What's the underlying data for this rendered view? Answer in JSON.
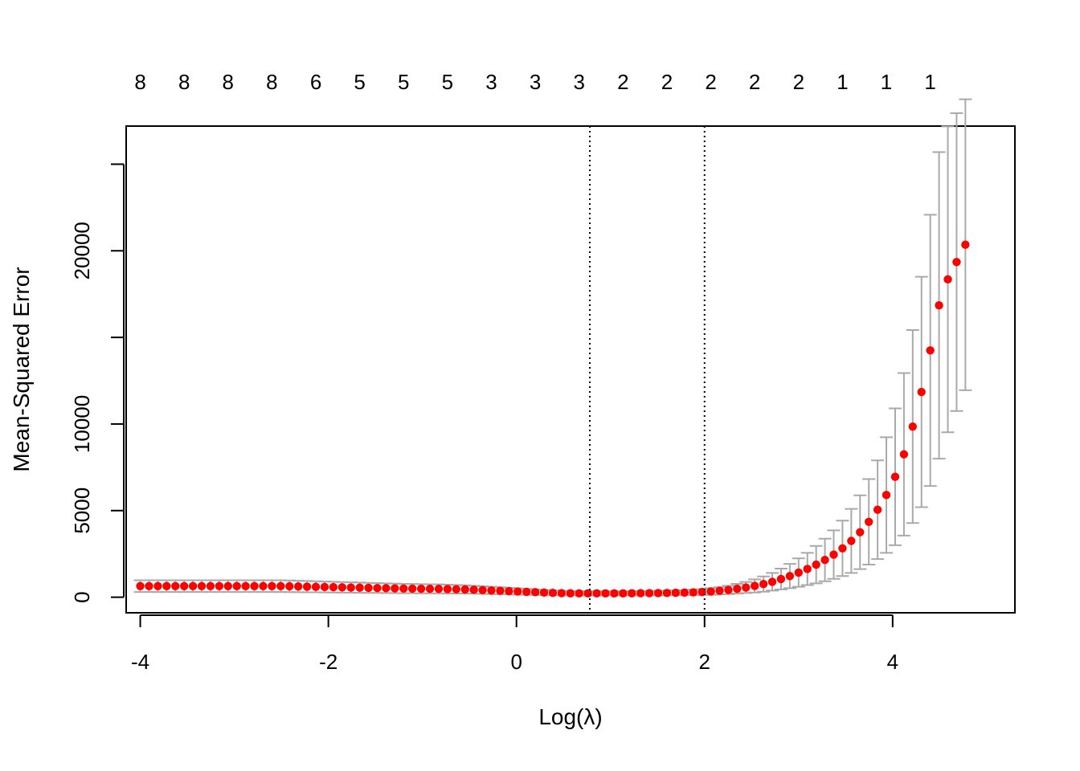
{
  "chart_data": {
    "type": "scatter",
    "title": "",
    "xlabel": "Log(λ)",
    "ylabel": "Mean-Squared Error",
    "xlim": [
      -4.15,
      5.3
    ],
    "ylim": [
      -900,
      27200
    ],
    "x_ticks": [
      -4,
      -2,
      0,
      2,
      4
    ],
    "x_tick_labels": [
      "-4",
      "-2",
      "0",
      "2",
      "4"
    ],
    "y_ticks": [
      0,
      5000,
      10000,
      15000,
      20000,
      25000
    ],
    "y_tick_labels": [
      "0",
      "5000",
      "10000",
      "",
      "20000",
      ""
    ],
    "top_axis": {
      "positions": [
        -4,
        -3.533,
        -3.067,
        -2.6,
        -2.133,
        -1.667,
        -1.2,
        -0.733,
        -0.267,
        0.2,
        0.667,
        1.133,
        1.6,
        2.067,
        2.533,
        3.0,
        3.467,
        3.933,
        4.4
      ],
      "labels": [
        "8",
        "8",
        "8",
        "8",
        "6",
        "5",
        "5",
        "5",
        "3",
        "3",
        "3",
        "2",
        "2",
        "2",
        "2",
        "2",
        "1",
        "1",
        "1"
      ]
    },
    "vlines": [
      0.78,
      2.0
    ],
    "log_lambda": [
      -4.0,
      -3.9067,
      -3.8133,
      -3.72,
      -3.6267,
      -3.5333,
      -3.44,
      -3.3467,
      -3.2533,
      -3.16,
      -3.0667,
      -2.9733,
      -2.88,
      -2.7867,
      -2.6933,
      -2.6,
      -2.5067,
      -2.4133,
      -2.32,
      -2.2267,
      -2.1333,
      -2.04,
      -1.9467,
      -1.8533,
      -1.76,
      -1.6667,
      -1.5733,
      -1.48,
      -1.3867,
      -1.2933,
      -1.2,
      -1.1067,
      -1.0133,
      -0.92,
      -0.8267,
      -0.7333,
      -0.64,
      -0.5467,
      -0.4533,
      -0.36,
      -0.2667,
      -0.1733,
      -0.08,
      0.0133,
      0.1067,
      0.2,
      0.2933,
      0.3867,
      0.48,
      0.5733,
      0.6667,
      0.76,
      0.8533,
      0.9467,
      1.04,
      1.1333,
      1.2267,
      1.32,
      1.4133,
      1.5067,
      1.6,
      1.6933,
      1.7867,
      1.88,
      1.9733,
      2.0667,
      2.16,
      2.2533,
      2.3467,
      2.44,
      2.5333,
      2.6267,
      2.72,
      2.8133,
      2.9067,
      3.0,
      3.0933,
      3.1867,
      3.28,
      3.3733,
      3.4667,
      3.56,
      3.6533,
      3.7467,
      3.84,
      3.9333,
      4.0267,
      4.12,
      4.2133,
      4.3067,
      4.4,
      4.4933,
      4.5867,
      4.68,
      4.7733
    ],
    "mse": [
      640,
      640,
      640,
      640,
      640,
      640,
      640,
      640,
      640,
      640,
      640,
      640,
      640,
      640,
      640,
      640,
      640,
      630,
      620,
      610,
      600,
      590,
      580,
      570,
      560,
      550,
      540,
      530,
      520,
      510,
      500,
      495,
      490,
      485,
      480,
      470,
      460,
      450,
      430,
      410,
      390,
      370,
      350,
      330,
      310,
      290,
      270,
      250,
      235,
      225,
      220,
      220,
      220,
      220,
      220,
      220,
      225,
      230,
      235,
      240,
      245,
      255,
      265,
      280,
      300,
      330,
      370,
      420,
      490,
      560,
      650,
      760,
      890,
      1050,
      1220,
      1420,
      1630,
      1880,
      2150,
      2460,
      2820,
      3250,
      3750,
      4350,
      5050,
      5900,
      6950,
      8250,
      9850,
      11850,
      14250,
      16850,
      18350,
      19350,
      20350
    ],
    "mse_lower": [
      300,
      300,
      300,
      300,
      300,
      300,
      300,
      300,
      300,
      300,
      300,
      300,
      300,
      300,
      300,
      300,
      300,
      295,
      290,
      285,
      280,
      275,
      270,
      265,
      260,
      255,
      250,
      245,
      240,
      235,
      230,
      228,
      226,
      224,
      222,
      218,
      214,
      210,
      200,
      190,
      180,
      170,
      160,
      150,
      140,
      130,
      120,
      110,
      100,
      95,
      95,
      95,
      95,
      95,
      95,
      95,
      95,
      100,
      100,
      105,
      110,
      110,
      115,
      120,
      130,
      140,
      160,
      180,
      210,
      240,
      270,
      320,
      380,
      450,
      520,
      600,
      700,
      800,
      920,
      1060,
      1220,
      1400,
      1620,
      1880,
      2200,
      2560,
      3000,
      3560,
      4280,
      5200,
      6420,
      8000,
      9520,
      10750,
      11950
    ],
    "mse_upper": [
      980,
      980,
      980,
      980,
      980,
      980,
      980,
      980,
      980,
      980,
      980,
      980,
      980,
      980,
      980,
      980,
      980,
      965,
      950,
      935,
      920,
      905,
      890,
      875,
      860,
      845,
      830,
      815,
      800,
      785,
      770,
      762,
      754,
      746,
      738,
      722,
      706,
      690,
      660,
      630,
      600,
      570,
      540,
      510,
      480,
      450,
      420,
      390,
      370,
      355,
      345,
      345,
      345,
      345,
      345,
      345,
      355,
      360,
      370,
      375,
      380,
      400,
      415,
      440,
      470,
      520,
      580,
      660,
      770,
      880,
      1030,
      1200,
      1400,
      1650,
      1920,
      2240,
      2560,
      2960,
      3380,
      3860,
      4420,
      5100,
      5880,
      6820,
      7900,
      9240,
      10900,
      12940,
      15420,
      18500,
      22080,
      25700,
      27180,
      27950,
      28750
    ],
    "colors": {
      "points": "#ff0000",
      "error_bars": "#a9a9a9",
      "axes": "#000000"
    }
  }
}
